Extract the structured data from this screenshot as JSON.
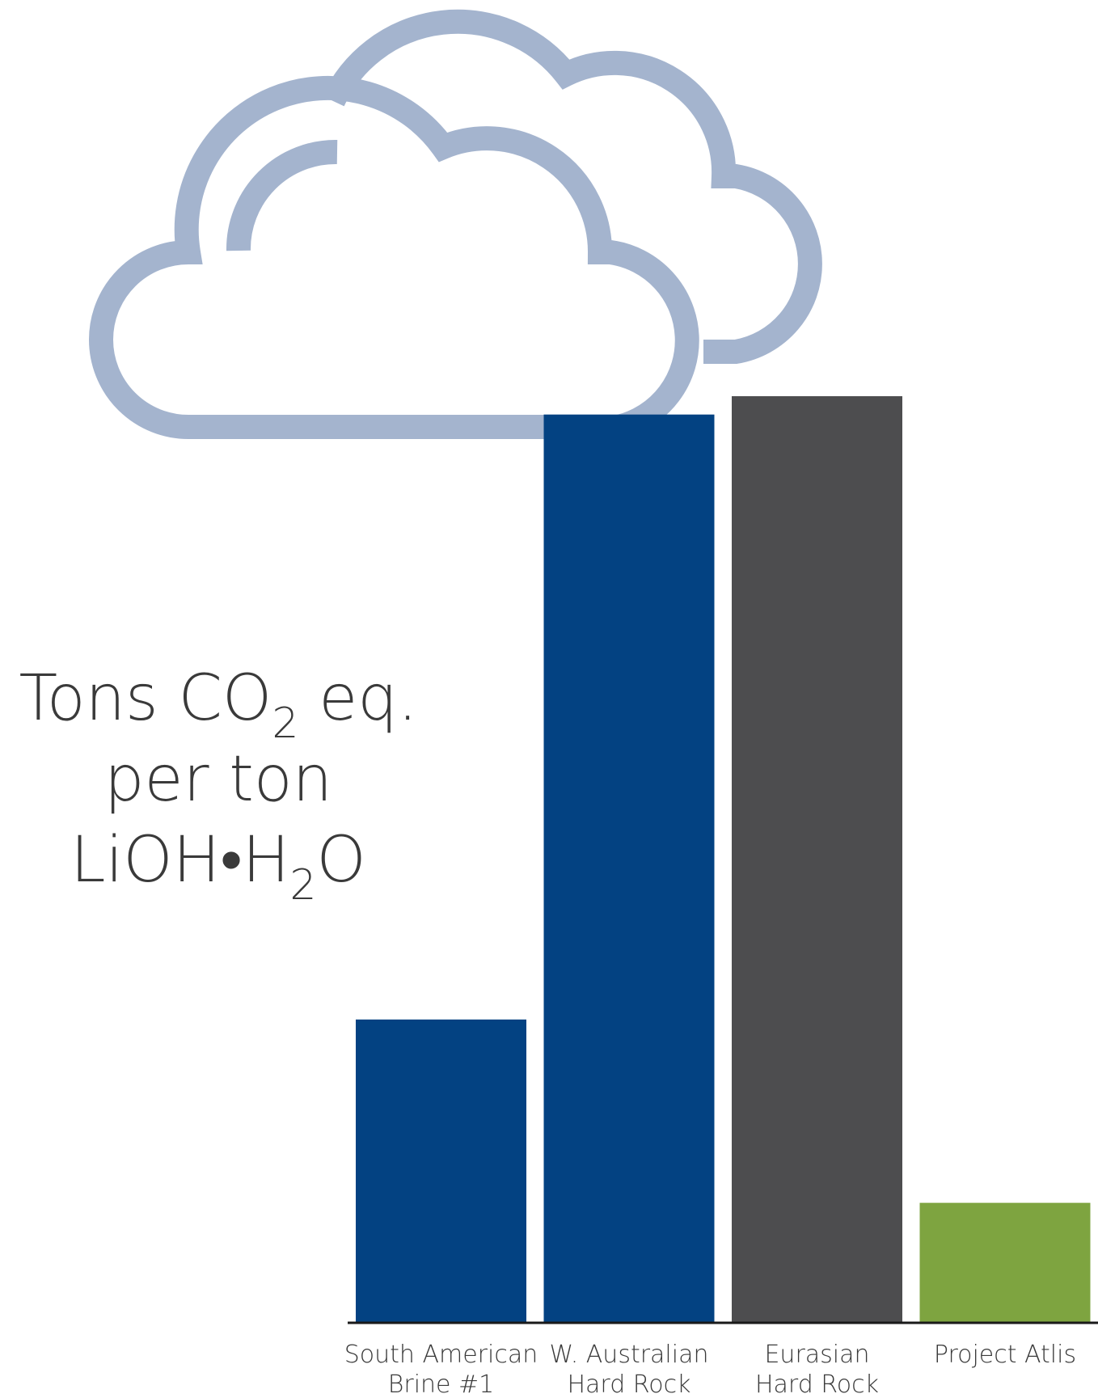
{
  "chart_data": {
    "type": "bar",
    "title": "",
    "ylabel": {
      "line1_pre": "Tons CO",
      "line1_sub": "2",
      "line1_post": " eq.",
      "line2": "per ton",
      "line3_pre": "LiOH•H",
      "line3_sub": "2",
      "line3_post": "O"
    },
    "xlabel": "",
    "categories": [
      {
        "line1": "South American",
        "line2": "Brine #1"
      },
      {
        "line1": "W. Australian",
        "line2": "Hard Rock"
      },
      {
        "line1": "Eurasian",
        "line2": "Hard Rock"
      },
      {
        "line1": "Project Atlis",
        "line2": ""
      }
    ],
    "values": [
      3.3,
      9.9,
      10.1,
      1.3
    ],
    "ylim": [
      0,
      10.1
    ],
    "bar_colors": [
      "#034282",
      "#034282",
      "#4d4d4f",
      "#7ea440"
    ],
    "grid": false,
    "legend": "none"
  },
  "decoration": {
    "icon": "cloud-icon",
    "color": "#a4b4ce"
  }
}
